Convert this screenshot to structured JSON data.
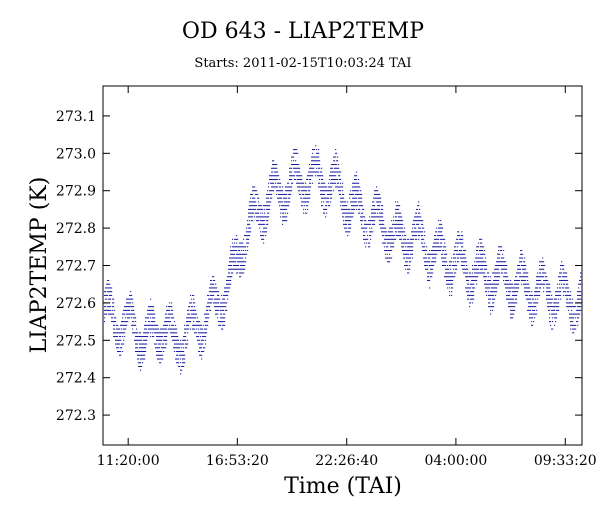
{
  "chart_data": {
    "type": "scatter",
    "title": "OD 643 - LIAP2TEMP",
    "subtitle": "Starts: 2011-02-15T10:03:24 TAI",
    "xlabel": "Time (TAI)",
    "ylabel": "LIAP2TEMP (K)",
    "x_unit": "hours since 2011-02-15T10:03:24 TAI",
    "xlim": [
      0,
      24.35
    ],
    "ylim": [
      272.22,
      273.18
    ],
    "x_ticks": [
      {
        "value": 1.28,
        "label": "11:20:00"
      },
      {
        "value": 6.83,
        "label": "16:53:20"
      },
      {
        "value": 12.39,
        "label": "22:26:40"
      },
      {
        "value": 17.94,
        "label": "04:00:00"
      },
      {
        "value": 23.5,
        "label": "09:33:20"
      }
    ],
    "y_ticks": [
      272.3,
      272.4,
      272.5,
      272.6,
      272.7,
      272.8,
      272.9,
      273.0,
      273.1
    ],
    "y_tick_labels": [
      "272.3",
      "272.4",
      "272.5",
      "272.6",
      "272.7",
      "272.8",
      "272.9",
      "273.0",
      "273.1"
    ],
    "y_resolution": 0.01,
    "series": [
      {
        "name": "",
        "color": "#1a1aa0",
        "trend": {
          "x": [
            0,
            0.6,
            1.5,
            2.1,
            3.0,
            3.6,
            4.5,
            5.1,
            5.8,
            6.5,
            7.0,
            7.8,
            8.6,
            9.4,
            10.2,
            11.0,
            11.8,
            12.6,
            13.4,
            14.2,
            15.0,
            15.8,
            16.6,
            17.4,
            18.2,
            19.0,
            19.8,
            20.6,
            21.4,
            22.2,
            23.0,
            23.8,
            24.35
          ],
          "y": [
            272.58,
            272.55,
            272.54,
            272.5,
            272.54,
            272.49,
            272.53,
            272.55,
            272.6,
            272.66,
            272.76,
            272.84,
            272.89,
            272.91,
            272.93,
            272.93,
            272.91,
            272.86,
            272.83,
            272.81,
            272.77,
            272.78,
            272.74,
            272.72,
            272.7,
            272.68,
            272.67,
            272.66,
            272.64,
            272.63,
            272.62,
            272.61,
            272.6
          ]
        },
        "oscillation_amplitude": 0.05,
        "oscillation_period_hours": 1.05
      }
    ],
    "grid": false,
    "legend": "none"
  }
}
